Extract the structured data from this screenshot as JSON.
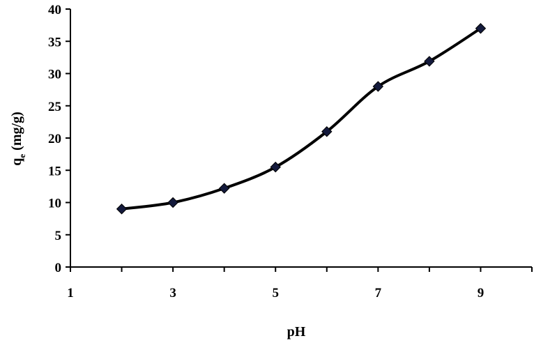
{
  "chart_data": {
    "type": "line",
    "xlabel": "pH",
    "ylabel": "q",
    "ylabel_subscript": "e",
    "ylabel_unit": " (mg/g)",
    "xlim": [
      1,
      10
    ],
    "ylim": [
      0,
      40
    ],
    "x_ticks": [
      1,
      3,
      5,
      7,
      9
    ],
    "y_ticks": [
      0,
      5,
      10,
      15,
      20,
      25,
      30,
      35,
      40
    ],
    "grid": false,
    "legend": "none",
    "marker": "diamond",
    "line_color": "#000000",
    "marker_color": "#141a3c",
    "series": [
      {
        "x": [
          2,
          3,
          4,
          5,
          6,
          7,
          8,
          9
        ],
        "y": [
          9.0,
          10.0,
          12.2,
          15.5,
          21.0,
          28.0,
          31.9,
          37.0
        ]
      }
    ]
  }
}
